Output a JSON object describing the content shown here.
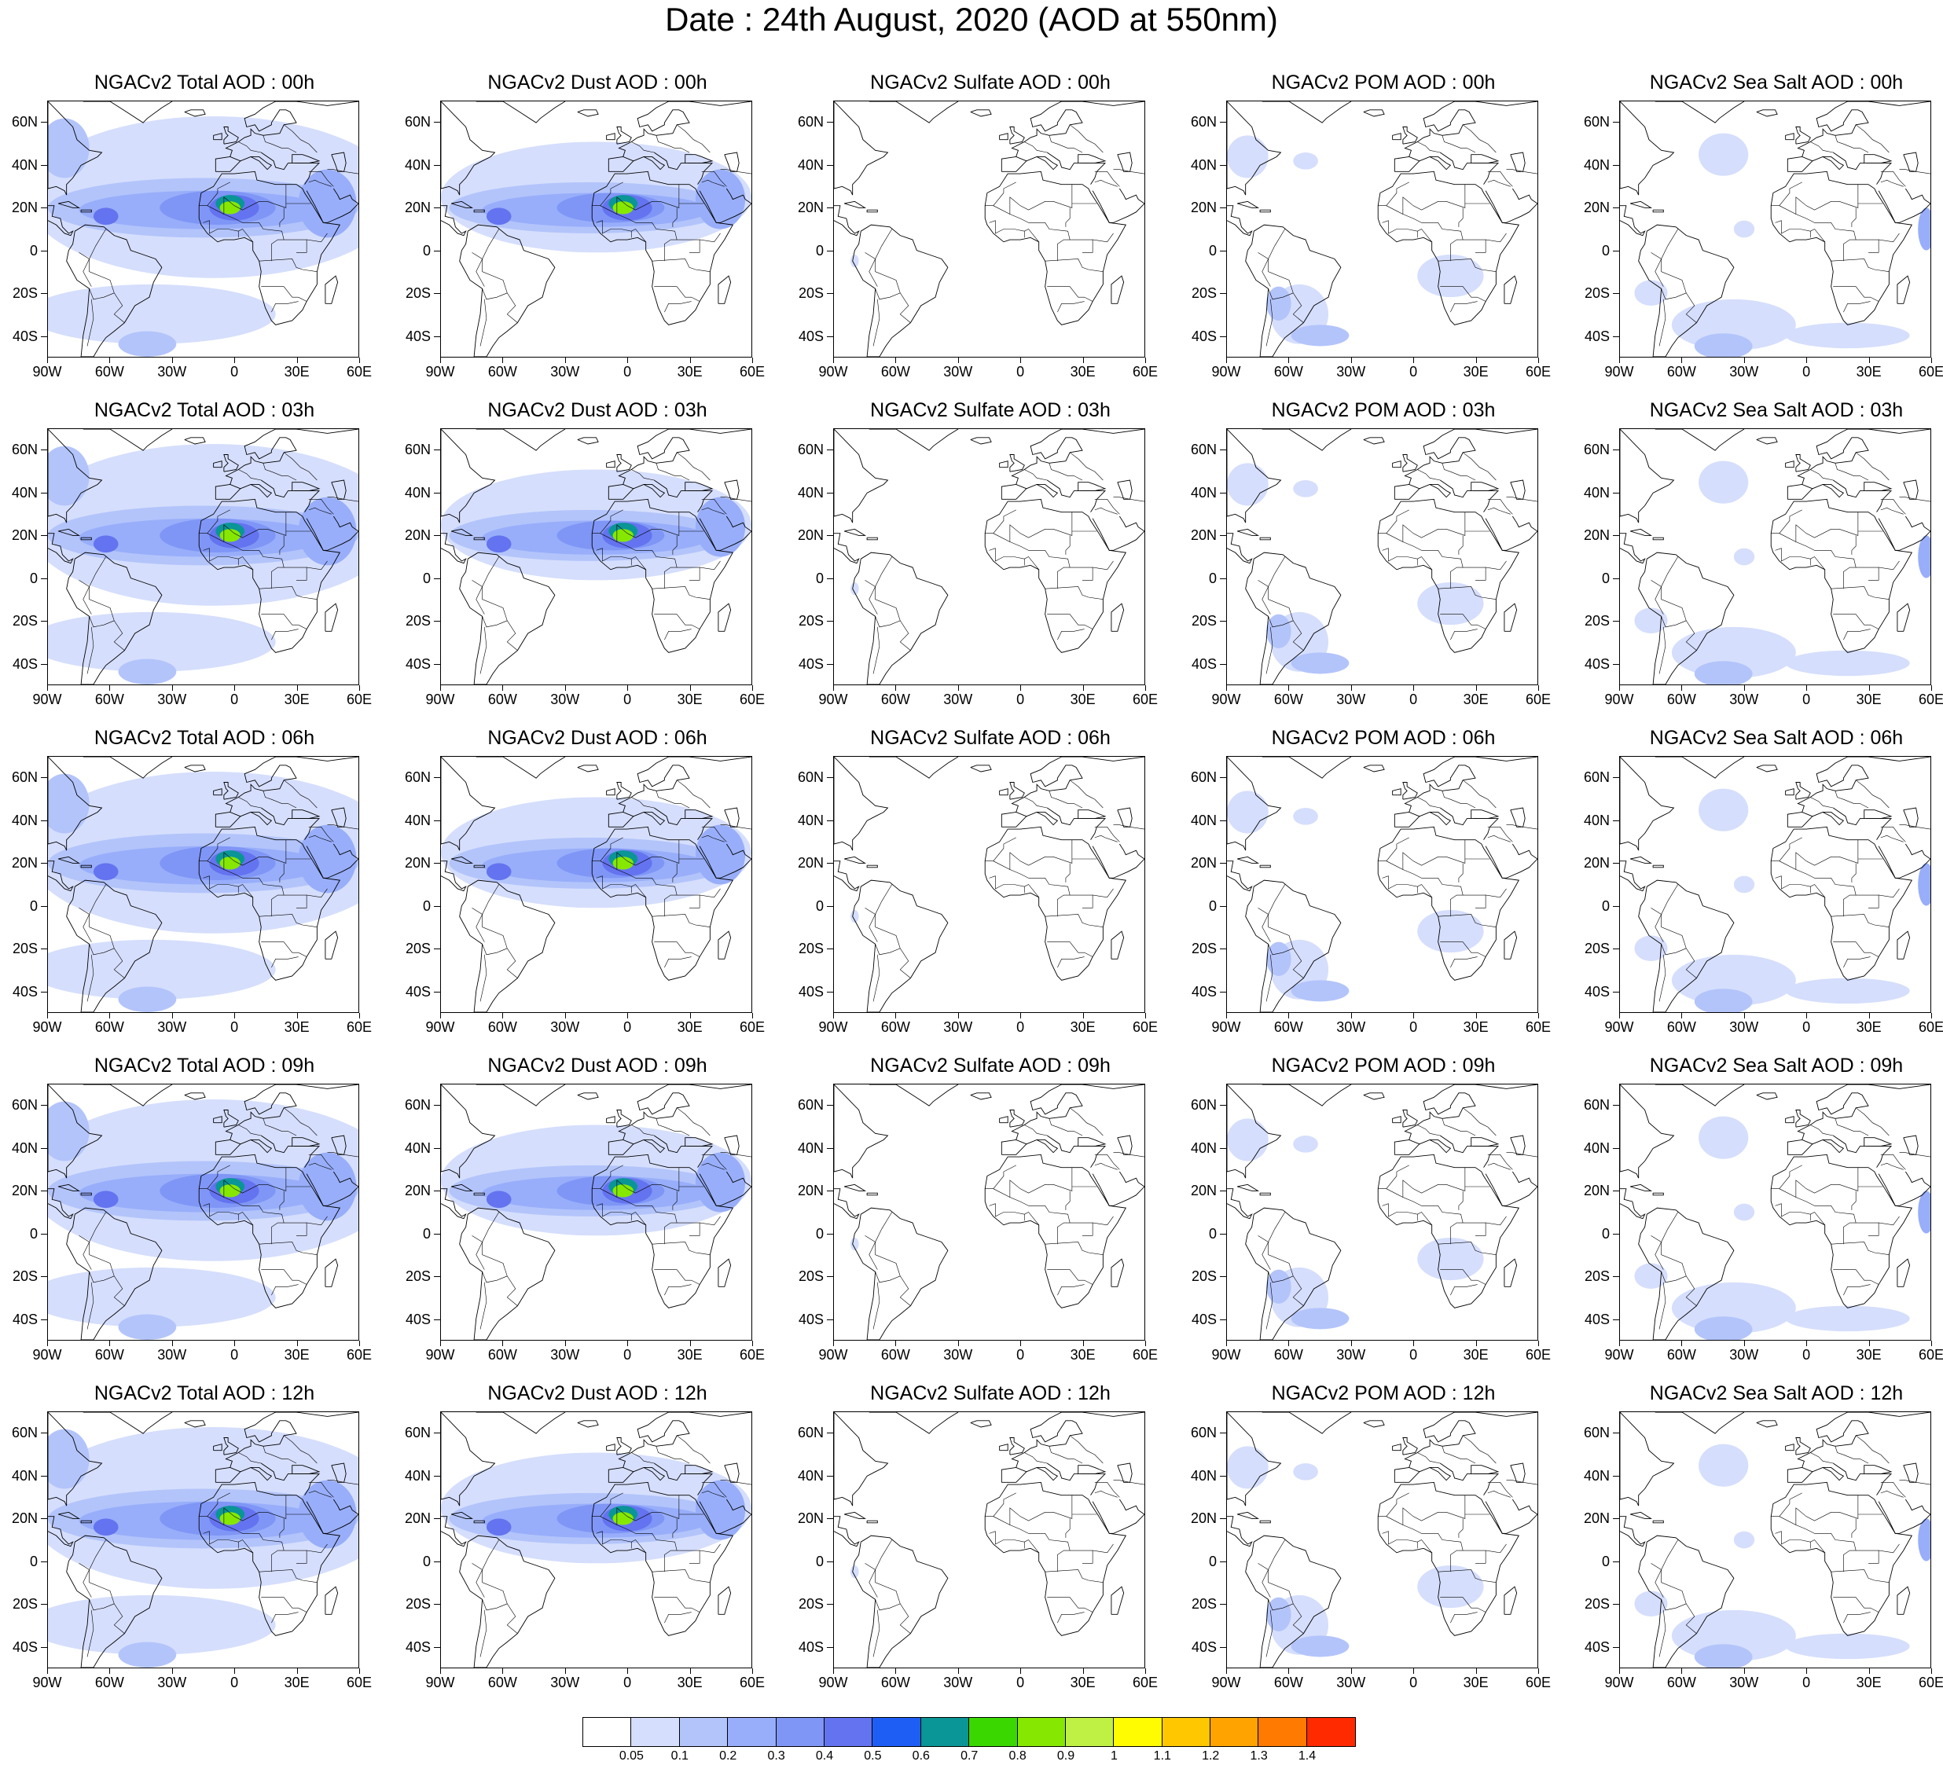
{
  "title": "Date : 24th August, 2020 (AOD at 550nm)",
  "columns": [
    {
      "species": "total",
      "titles": [
        "NGACv2 Total AOD : 00h",
        "NGACv2 Total AOD : 03h",
        "NGACv2 Total AOD : 06h",
        "NGACv2 Total AOD : 09h",
        "NGACv2 Total AOD  : 12h"
      ]
    },
    {
      "species": "dust",
      "titles": [
        "NGACv2 Dust AOD : 00h",
        "NGACv2 Dust AOD : 03h",
        "NGACv2 Dust AOD : 06h",
        "NGACv2 Dust AOD : 09h",
        "NGACv2 Dust AOD : 12h"
      ]
    },
    {
      "species": "sulfate",
      "titles": [
        "NGACv2 Sulfate AOD : 00h",
        "NGACv2 Sulfate AOD : 03h",
        "NGACv2 Sulfate AOD : 06h",
        "NGACv2 Sulfate AOD : 09h",
        "NGACv2 Sulfate AOD : 12h"
      ]
    },
    {
      "species": "pom",
      "titles": [
        "NGACv2 POM AOD : 00h",
        "NGACv2 POM AOD : 03h",
        "NGACv2 POM AOD : 06h",
        "NGACv2 POM AOD : 09h",
        "NGACv2 POM  AOD : 12h"
      ]
    },
    {
      "species": "seasalt",
      "titles": [
        "NGACv2 Sea Salt AOD : 00h",
        "NGACv2 Sea Salt AOD : 03h",
        "NGACv2 Sea Salt AOD : 06h",
        "NGACv2 Sea Salt  AOD : 09h",
        "NGACv2 Sea Salt  AOD : 12h"
      ]
    }
  ],
  "axes": {
    "lat_labels": [
      "60N",
      "40N",
      "20N",
      "0",
      "20S",
      "40S"
    ],
    "lon_labels": [
      "90W",
      "60W",
      "30W",
      "0",
      "30E",
      "60E"
    ],
    "lat_values": [
      60,
      40,
      20,
      0,
      -20,
      -40
    ],
    "lon_values": [
      -90,
      -60,
      -30,
      0,
      30,
      60
    ],
    "lat_range": [
      -50,
      70
    ],
    "lon_range": [
      -90,
      60
    ]
  },
  "colorbar": {
    "colors": [
      "#ffffff",
      "#d5defc",
      "#b3c4fb",
      "#98aefa",
      "#7f96f6",
      "#6473ef",
      "#1f5ef5",
      "#0a9596",
      "#3ad800",
      "#86e800",
      "#bff044",
      "#fffb00",
      "#ffc700",
      "#ffa300",
      "#ff7a00",
      "#ff2a00"
    ],
    "labels": [
      "0.05",
      "0.1",
      "0.2",
      "0.3",
      "0.4",
      "0.5",
      "0.6",
      "0.7",
      "0.8",
      "0.9",
      "1",
      "1.1",
      "1.2",
      "1.3",
      "1.4"
    ]
  }
}
